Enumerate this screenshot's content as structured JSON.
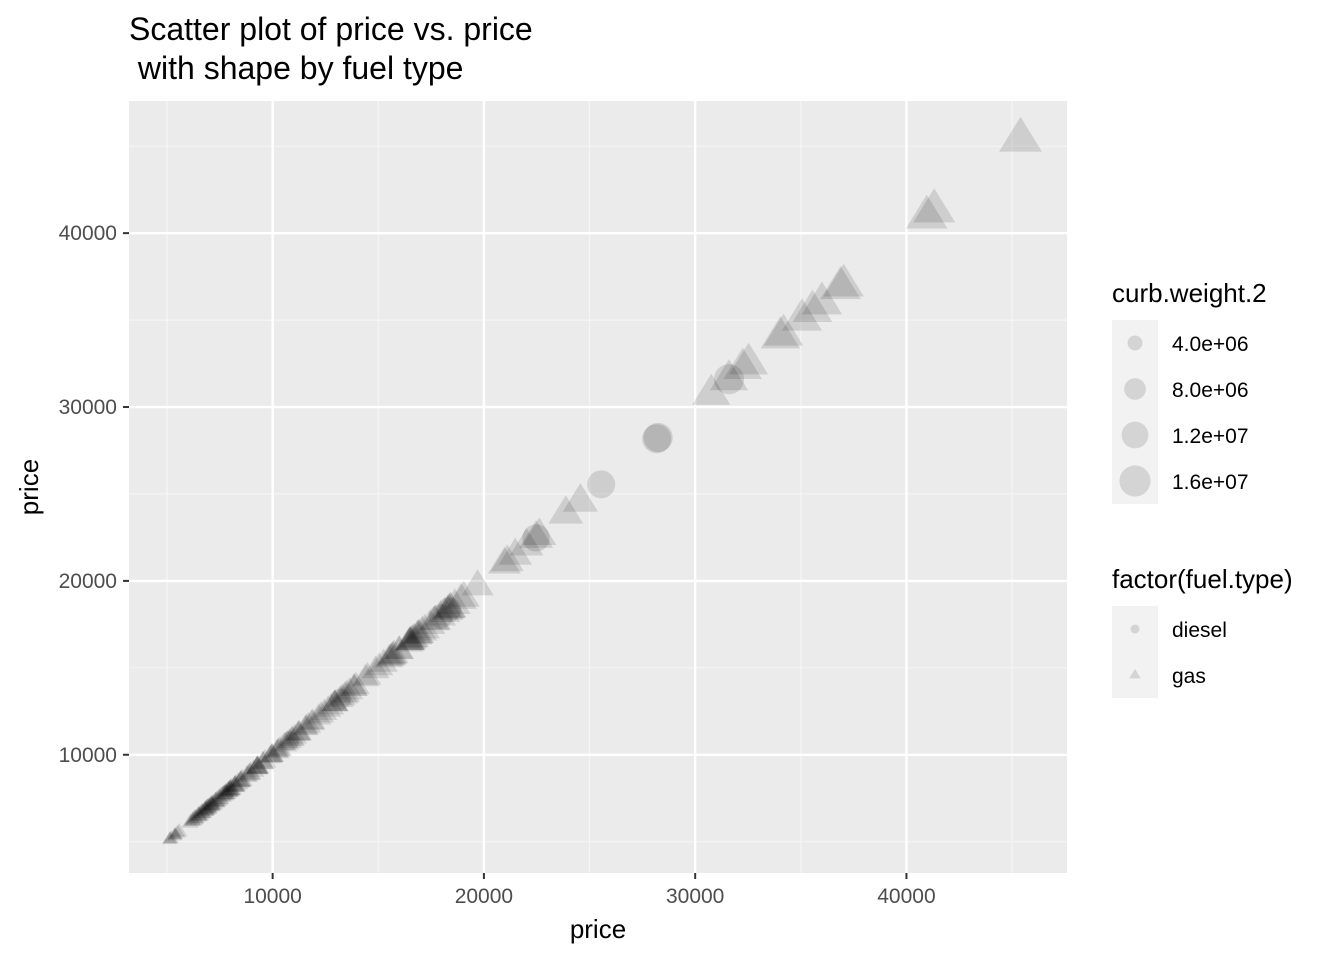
{
  "chart_data": {
    "type": "scatter",
    "title_line1": "Scatter plot of price vs. price",
    "title_line2": " with shape by fuel type",
    "xlabel": "price",
    "ylabel": "price",
    "xlim": [
      3200,
      47600
    ],
    "ylim": [
      3200,
      47600
    ],
    "x_ticks": [
      10000,
      20000,
      30000,
      40000
    ],
    "y_ticks": [
      10000,
      20000,
      30000,
      40000
    ],
    "grid": true,
    "legend_position": "right",
    "point_color": "#000000",
    "point_alpha": 0.12,
    "panel_background": "#ebebeb",
    "size_legend": {
      "title": "curb.weight.2",
      "entries": [
        {
          "label": "4.0e+06",
          "value": 4000000
        },
        {
          "label": "8.0e+06",
          "value": 8000000
        },
        {
          "label": "1.2e+07",
          "value": 12000000
        },
        {
          "label": "1.6e+07",
          "value": 16000000
        }
      ]
    },
    "shape_legend": {
      "title": "factor(fuel.type)",
      "entries": [
        {
          "label": "diesel",
          "shape": "circle"
        },
        {
          "label": "gas",
          "shape": "triangle"
        }
      ]
    },
    "series": [
      {
        "name": "gas",
        "points": [
          [
            5118,
            5118,
            2700000
          ],
          [
            5151,
            5151,
            2600000
          ],
          [
            5195,
            5195,
            2700000
          ],
          [
            5348,
            5348,
            2800000
          ],
          [
            5389,
            5389,
            2500000
          ],
          [
            5399,
            5399,
            2500000
          ],
          [
            5499,
            5499,
            2800000
          ],
          [
            5572,
            5572,
            3100000
          ],
          [
            6095,
            6095,
            3300000
          ],
          [
            6189,
            6189,
            3300000
          ],
          [
            6229,
            6229,
            3400000
          ],
          [
            6295,
            6295,
            3800000
          ],
          [
            6338,
            6338,
            3400000
          ],
          [
            6377,
            6377,
            3400000
          ],
          [
            6479,
            6479,
            3700000
          ],
          [
            6488,
            6488,
            3800000
          ],
          [
            6529,
            6529,
            3500000
          ],
          [
            6575,
            6575,
            3800000
          ],
          [
            6649,
            6649,
            3600000
          ],
          [
            6669,
            6669,
            3500000
          ],
          [
            6692,
            6692,
            3900000
          ],
          [
            6785,
            6785,
            3800000
          ],
          [
            6795,
            6795,
            3800000
          ],
          [
            6849,
            6849,
            3700000
          ],
          [
            6855,
            6855,
            3700000
          ],
          [
            6918,
            6918,
            3900000
          ],
          [
            6938,
            6938,
            3700000
          ],
          [
            6989,
            6989,
            3700000
          ],
          [
            7053,
            7053,
            3900000
          ],
          [
            7099,
            7099,
            3600000
          ],
          [
            7126,
            7126,
            4000000
          ],
          [
            7129,
            7129,
            3800000
          ],
          [
            7198,
            7198,
            4100000
          ],
          [
            7295,
            7295,
            4000000
          ],
          [
            7299,
            7299,
            4000000
          ],
          [
            7349,
            7349,
            4000000
          ],
          [
            7395,
            7395,
            4100000
          ],
          [
            7463,
            7463,
            4000000
          ],
          [
            7499,
            7499,
            4100000
          ],
          [
            7609,
            7609,
            4100000
          ],
          [
            7689,
            7689,
            4200000
          ],
          [
            7738,
            7738,
            4200000
          ],
          [
            7775,
            7775,
            4200000
          ],
          [
            7799,
            7799,
            4300000
          ],
          [
            7895,
            7895,
            4400000
          ],
          [
            7898,
            7898,
            4200000
          ],
          [
            7957,
            7957,
            4300000
          ],
          [
            7975,
            7975,
            4200000
          ],
          [
            7995,
            7995,
            4300000
          ],
          [
            8013,
            8013,
            4500000
          ],
          [
            8058,
            8058,
            4400000
          ],
          [
            8189,
            8189,
            4400000
          ],
          [
            8195,
            8195,
            4300000
          ],
          [
            8238,
            8238,
            4600000
          ],
          [
            8249,
            8249,
            4400000
          ],
          [
            8358,
            8358,
            4700000
          ],
          [
            8449,
            8449,
            4500000
          ],
          [
            8495,
            8495,
            4500000
          ],
          [
            8499,
            8499,
            4600000
          ],
          [
            8558,
            8558,
            4800000
          ],
          [
            8778,
            8778,
            4700000
          ],
          [
            8845,
            8845,
            4800000
          ],
          [
            8921,
            8921,
            4900000
          ],
          [
            8948,
            8948,
            5000000
          ],
          [
            9095,
            9095,
            5100000
          ],
          [
            9233,
            9233,
            5000000
          ],
          [
            9258,
            9258,
            5200000
          ],
          [
            9279,
            9279,
            5300000
          ],
          [
            9295,
            9295,
            5400000
          ],
          [
            9298,
            9298,
            5200000
          ],
          [
            9538,
            9538,
            5300000
          ],
          [
            9549,
            9549,
            5400000
          ],
          [
            9639,
            9639,
            5500000
          ],
          [
            9895,
            9895,
            5600000
          ],
          [
            9959,
            9959,
            5700000
          ],
          [
            9960,
            9960,
            5500000
          ],
          [
            9989,
            9989,
            5700000
          ],
          [
            10198,
            10198,
            5900000
          ],
          [
            10245,
            10245,
            5800000
          ],
          [
            10295,
            10295,
            5700000
          ],
          [
            10345,
            10345,
            6000000
          ],
          [
            10595,
            10595,
            6000000
          ],
          [
            10698,
            10698,
            6100000
          ],
          [
            10795,
            10795,
            6200000
          ],
          [
            10898,
            10898,
            6300000
          ],
          [
            10945,
            10945,
            6400000
          ],
          [
            11048,
            11048,
            6300000
          ],
          [
            11199,
            11199,
            6500000
          ],
          [
            11245,
            11245,
            6600000
          ],
          [
            11259,
            11259,
            6400000
          ],
          [
            11549,
            11549,
            6600000
          ],
          [
            11595,
            11595,
            6700000
          ],
          [
            11694,
            11694,
            6800000
          ],
          [
            11850,
            11850,
            6900000
          ],
          [
            11900,
            11900,
            6700000
          ],
          [
            12170,
            12170,
            7000000
          ],
          [
            12290,
            12290,
            7100000
          ],
          [
            12440,
            12440,
            7000000
          ],
          [
            12629,
            12629,
            7200000
          ],
          [
            12764,
            12764,
            7200000
          ],
          [
            12940,
            12940,
            7300000
          ],
          [
            12945,
            12945,
            7400000
          ],
          [
            12964,
            12964,
            7200000
          ],
          [
            13200,
            13200,
            7500000
          ],
          [
            13295,
            13295,
            7400000
          ],
          [
            13415,
            13415,
            7600000
          ],
          [
            13499,
            13499,
            7500000
          ],
          [
            13645,
            13645,
            7700000
          ],
          [
            13845,
            13845,
            7700000
          ],
          [
            13860,
            13860,
            7800000
          ],
          [
            13950,
            13950,
            7600000
          ],
          [
            14399,
            14399,
            7900000
          ],
          [
            14489,
            14489,
            8000000
          ],
          [
            14869,
            14869,
            8100000
          ],
          [
            15040,
            15040,
            8200000
          ],
          [
            15250,
            15250,
            8300000
          ],
          [
            15510,
            15510,
            8400000
          ],
          [
            15580,
            15580,
            8400000
          ],
          [
            15645,
            15645,
            8500000
          ],
          [
            15690,
            15690,
            8300000
          ],
          [
            15750,
            15750,
            8600000
          ],
          [
            15985,
            15985,
            8600000
          ],
          [
            15998,
            15998,
            8700000
          ],
          [
            16430,
            16430,
            8800000
          ],
          [
            16500,
            16500,
            8900000
          ],
          [
            16503,
            16503,
            8800000
          ],
          [
            16515,
            16515,
            9000000
          ],
          [
            16558,
            16558,
            9000000
          ],
          [
            16630,
            16630,
            9100000
          ],
          [
            16695,
            16695,
            9200000
          ],
          [
            16845,
            16845,
            9200000
          ],
          [
            16900,
            16900,
            9100000
          ],
          [
            16925,
            16925,
            9300000
          ],
          [
            17075,
            17075,
            9400000
          ],
          [
            17199,
            17199,
            9400000
          ],
          [
            17450,
            17450,
            9500000
          ],
          [
            17669,
            17669,
            9600000
          ],
          [
            17710,
            17710,
            9600000
          ],
          [
            17950,
            17950,
            9700000
          ],
          [
            18150,
            18150,
            9800000
          ],
          [
            18280,
            18280,
            9900000
          ],
          [
            18344,
            18344,
            9900000
          ],
          [
            18399,
            18399,
            10000000
          ],
          [
            18420,
            18420,
            10100000
          ],
          [
            18620,
            18620,
            10100000
          ],
          [
            18920,
            18920,
            10200000
          ],
          [
            19045,
            19045,
            10300000
          ],
          [
            19699,
            19699,
            10500000
          ],
          [
            20970,
            20970,
            11000000
          ],
          [
            21105,
            21105,
            11100000
          ],
          [
            21485,
            21485,
            11300000
          ],
          [
            22018,
            22018,
            11500000
          ],
          [
            22470,
            22470,
            11800000
          ],
          [
            22625,
            22625,
            11600000
          ],
          [
            24565,
            24565,
            12500000
          ],
          [
            23875,
            23875,
            12200000
          ],
          [
            30760,
            30760,
            14600000
          ],
          [
            31600,
            31600,
            14500000
          ],
          [
            32250,
            32250,
            14900000
          ],
          [
            32528,
            32528,
            15200000
          ],
          [
            34028,
            34028,
            15600000
          ],
          [
            34184,
            34184,
            15500000
          ],
          [
            35056,
            35056,
            16000000
          ],
          [
            35550,
            35550,
            15800000
          ],
          [
            36000,
            36000,
            16200000
          ],
          [
            36880,
            36880,
            16500000
          ],
          [
            37028,
            37028,
            16300000
          ],
          [
            40960,
            40960,
            17200000
          ],
          [
            41315,
            41315,
            17500000
          ],
          [
            45400,
            45400,
            18300000
          ]
        ]
      },
      {
        "name": "diesel",
        "points": [
          [
            7099,
            7099,
            4200000
          ],
          [
            7788,
            7788,
            4500000
          ],
          [
            10795,
            10795,
            6400000
          ],
          [
            13200,
            13200,
            7600000
          ],
          [
            17950,
            17950,
            10000000
          ],
          [
            18344,
            18344,
            10200000
          ],
          [
            22470,
            22470,
            12500000
          ],
          [
            25552,
            25552,
            13000000
          ],
          [
            28176,
            28176,
            14000000
          ],
          [
            28248,
            28248,
            14100000
          ],
          [
            31600,
            31600,
            15000000
          ]
        ]
      }
    ]
  }
}
